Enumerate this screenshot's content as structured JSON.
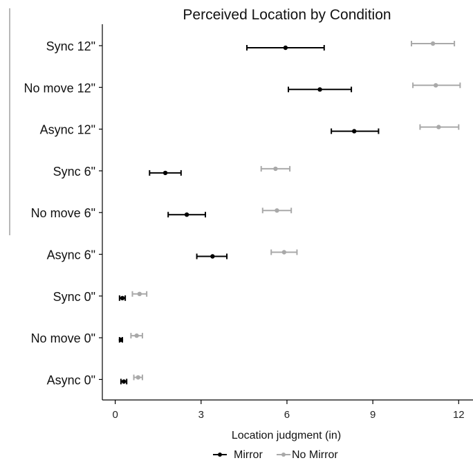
{
  "chart_data": {
    "type": "dot-errorbar",
    "title": "Perceived Location by Condition",
    "xlabel": "Location judgment (in)",
    "ylabel": "",
    "xlim": [
      -0.45,
      12.5
    ],
    "xticks": [
      0,
      3,
      6,
      9,
      12
    ],
    "categories": [
      "Sync 12\"",
      "No move 12\"",
      "Async 12\"",
      "Sync 6\"",
      "No move 6\"",
      "Async 6\"",
      "Sync 0\"",
      "No move 0\"",
      "Async 0\""
    ],
    "series": [
      {
        "name": "Mirror",
        "color": "#000000",
        "values": [
          5.95,
          7.15,
          8.35,
          1.75,
          2.5,
          3.4,
          0.25,
          0.2,
          0.3
        ],
        "lower": [
          4.6,
          6.05,
          7.55,
          1.2,
          1.85,
          2.85,
          0.15,
          0.15,
          0.2
        ],
        "upper": [
          7.3,
          8.25,
          9.2,
          2.3,
          3.15,
          3.9,
          0.35,
          0.25,
          0.4
        ]
      },
      {
        "name": "No Mirror",
        "color": "#a9a9a9",
        "values": [
          11.1,
          11.2,
          11.3,
          5.6,
          5.65,
          5.9,
          0.85,
          0.75,
          0.8
        ],
        "lower": [
          10.35,
          10.4,
          10.65,
          5.1,
          5.15,
          5.45,
          0.6,
          0.55,
          0.65
        ],
        "upper": [
          11.85,
          12.05,
          12.0,
          6.1,
          6.15,
          6.35,
          1.1,
          0.95,
          0.95
        ]
      }
    ],
    "legend_position": "bottom"
  }
}
